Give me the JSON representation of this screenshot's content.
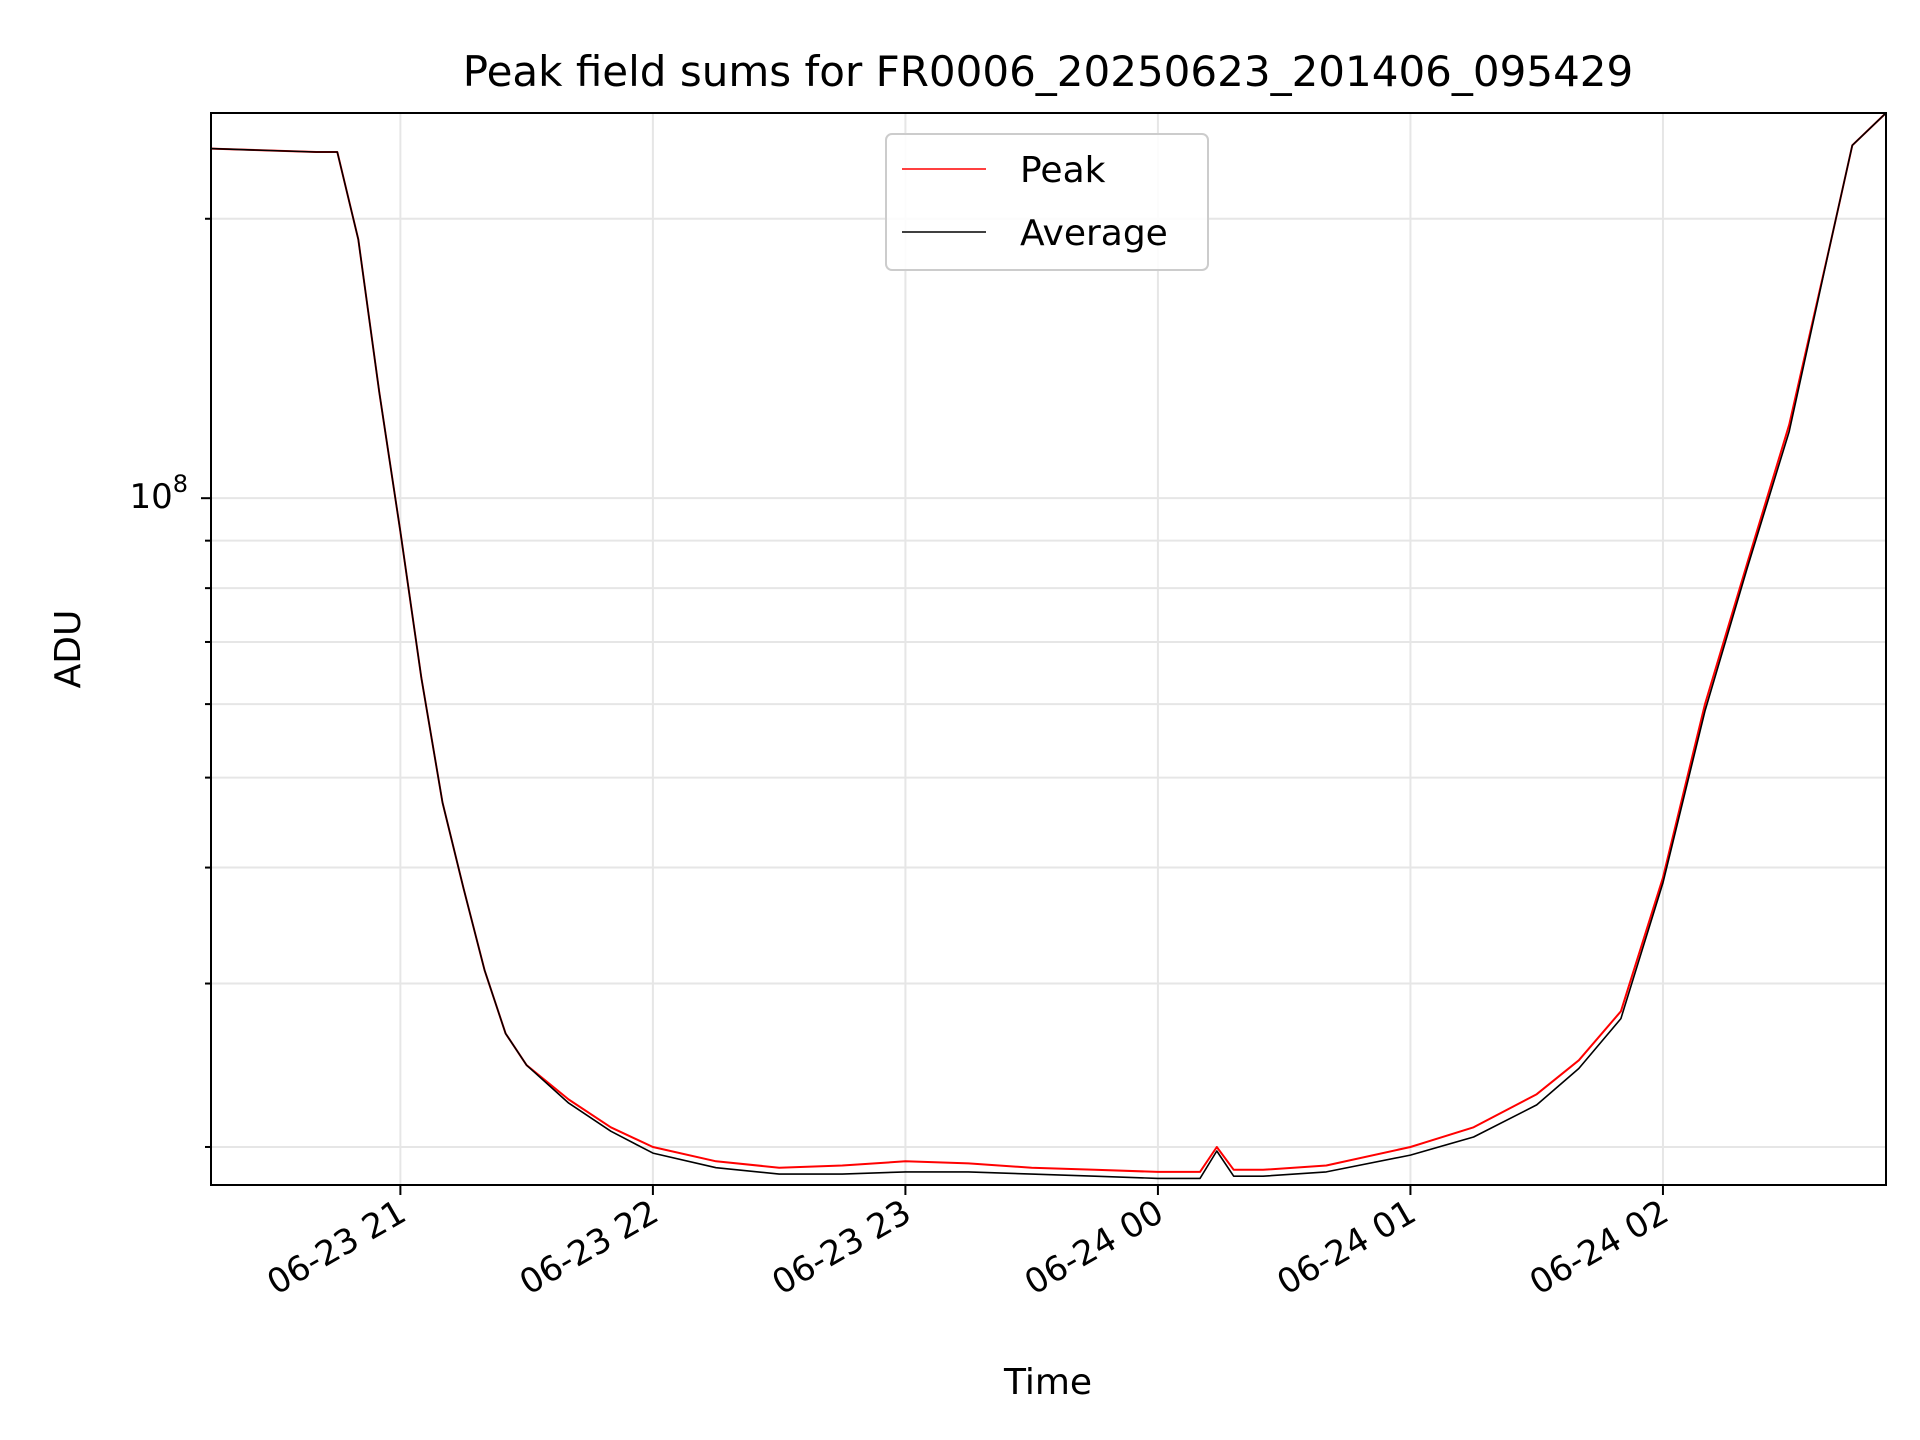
{
  "chart_data": {
    "type": "line",
    "title": "Peak field sums for FR0006_20250623_201406_095429",
    "xlabel": "Time",
    "ylabel": "ADU",
    "yscale": "log",
    "x_tick_labels": [
      "06-23 21",
      "06-23 22",
      "06-23 23",
      "06-24 00",
      "06-24 01",
      "06-24 02"
    ],
    "y_tick_label_base": "10",
    "y_tick_label_exp": "8",
    "xlim": [
      "2025-06-23 20:15",
      "2025-06-24 02:53"
    ],
    "ylim": [
      18200000,
      260000000
    ],
    "grid": true,
    "legend_position": "upper center",
    "x": [
      "2025-06-23 20:15",
      "2025-06-23 20:40",
      "2025-06-23 20:45",
      "2025-06-23 20:50",
      "2025-06-23 20:55",
      "2025-06-23 21:00",
      "2025-06-23 21:05",
      "2025-06-23 21:10",
      "2025-06-23 21:15",
      "2025-06-23 21:20",
      "2025-06-23 21:25",
      "2025-06-23 21:30",
      "2025-06-23 21:40",
      "2025-06-23 21:50",
      "2025-06-23 22:00",
      "2025-06-23 22:15",
      "2025-06-23 22:30",
      "2025-06-23 22:45",
      "2025-06-23 23:00",
      "2025-06-23 23:15",
      "2025-06-23 23:30",
      "2025-06-23 23:45",
      "2025-06-24 00:00",
      "2025-06-24 00:10",
      "2025-06-24 00:14",
      "2025-06-24 00:18",
      "2025-06-24 00:25",
      "2025-06-24 00:40",
      "2025-06-24 01:00",
      "2025-06-24 01:15",
      "2025-06-24 01:30",
      "2025-06-24 01:40",
      "2025-06-24 01:50",
      "2025-06-24 02:00",
      "2025-06-24 02:10",
      "2025-06-24 02:20",
      "2025-06-24 02:30",
      "2025-06-24 02:40",
      "2025-06-24 02:45",
      "2025-06-24 02:53"
    ],
    "series": [
      {
        "name": "Peak",
        "color": "#ff0000",
        "values": [
          238000000,
          236000000,
          236000000,
          190000000,
          130000000,
          92000000,
          64000000,
          47000000,
          38000000,
          31000000,
          26500000,
          24500000,
          22500000,
          21000000,
          20000000,
          19300000,
          19000000,
          19100000,
          19300000,
          19200000,
          19000000,
          18900000,
          18800000,
          18800000,
          20000000,
          18900000,
          18900000,
          19100000,
          20000000,
          21000000,
          22800000,
          24800000,
          28000000,
          39000000,
          60000000,
          85000000,
          120000000,
          190000000,
          240000000,
          280000000
        ]
      },
      {
        "name": "Average",
        "color": "#000000",
        "values": [
          238000000,
          236000000,
          236000000,
          190000000,
          130000000,
          92000000,
          64000000,
          47000000,
          38000000,
          31000000,
          26500000,
          24500000,
          22300000,
          20800000,
          19700000,
          19000000,
          18700000,
          18700000,
          18800000,
          18800000,
          18700000,
          18600000,
          18500000,
          18500000,
          19800000,
          18600000,
          18600000,
          18800000,
          19600000,
          20500000,
          22200000,
          24300000,
          27500000,
          38500000,
          59000000,
          84000000,
          118000000,
          190000000,
          240000000,
          280000000
        ]
      }
    ]
  }
}
